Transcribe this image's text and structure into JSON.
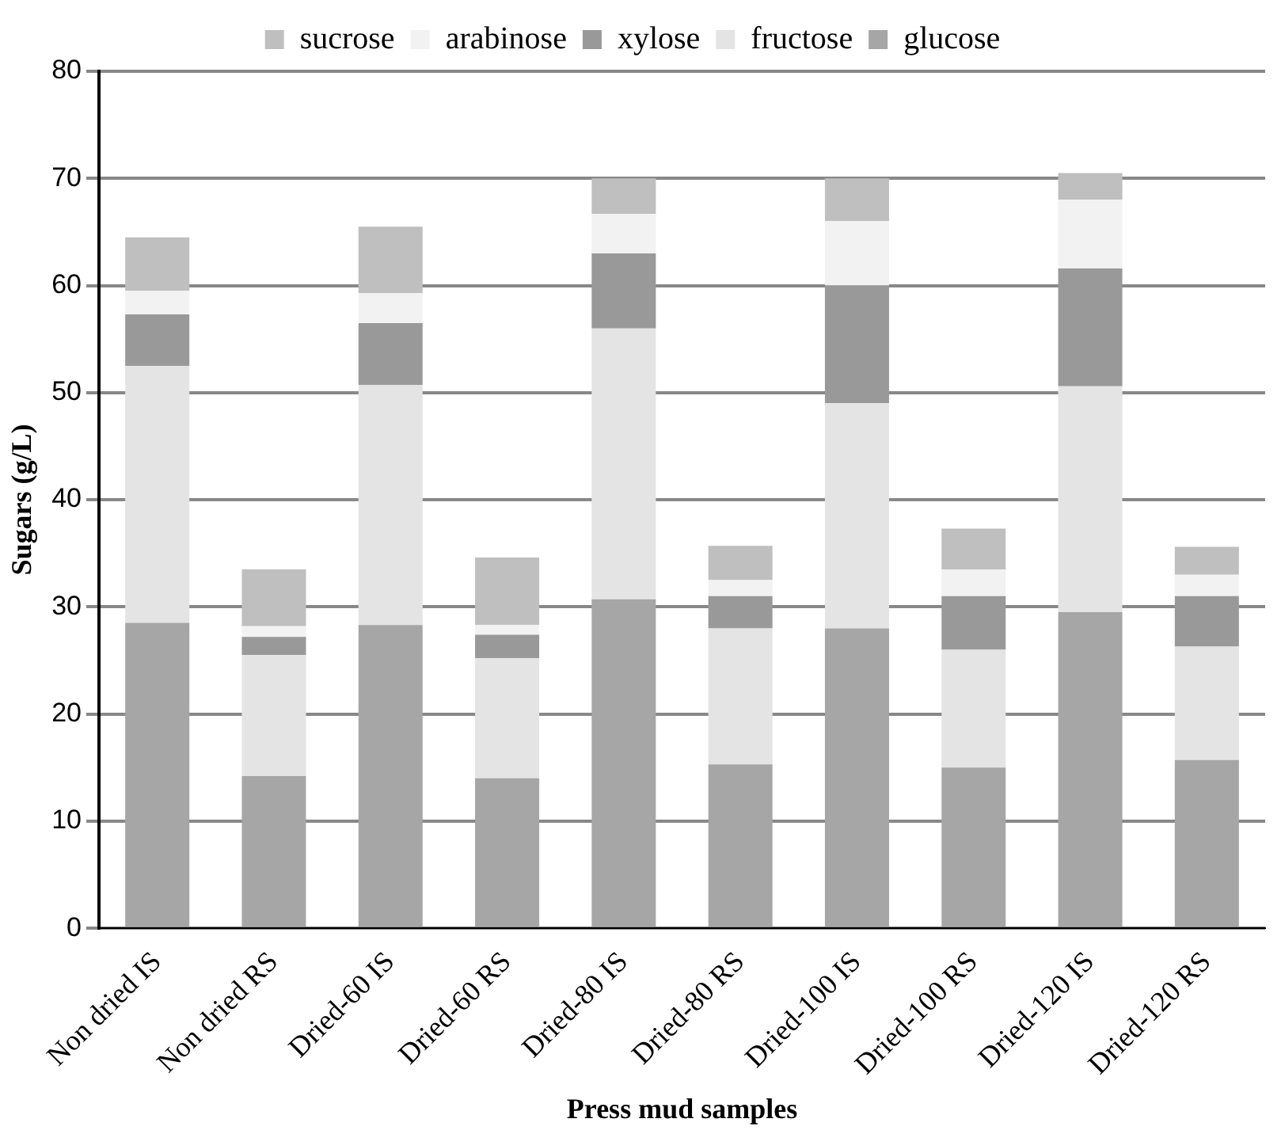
{
  "chart_data": {
    "type": "bar",
    "stacked": true,
    "xlabel": "Press mud samples",
    "ylabel": "Sugars (g/L)",
    "categories": [
      "Non dried IS",
      "Non dried RS",
      "Dried-60 IS",
      "Dried-60 RS",
      "Dried-80 IS",
      "Dried-80 RS",
      "Dried-100 IS",
      "Dried-100 RS",
      "Dried-120 IS",
      "Dried-120 RS"
    ],
    "series": [
      {
        "name": "glucose",
        "color": "#a6a6a6",
        "values": [
          28.5,
          14.2,
          28.3,
          14.0,
          30.7,
          15.3,
          28.0,
          15.0,
          29.5,
          15.7
        ]
      },
      {
        "name": "fructose",
        "color": "#e4e4e4",
        "values": [
          24.0,
          11.3,
          22.4,
          11.2,
          25.3,
          12.7,
          21.0,
          11.0,
          21.1,
          10.6
        ]
      },
      {
        "name": "xylose",
        "color": "#999999",
        "values": [
          4.8,
          1.7,
          5.8,
          2.2,
          7.0,
          3.0,
          11.0,
          5.0,
          11.0,
          4.7
        ]
      },
      {
        "name": "arabinose",
        "color": "#f2f2f2",
        "values": [
          2.2,
          1.0,
          2.8,
          0.9,
          3.7,
          1.5,
          6.0,
          2.5,
          6.4,
          2.0
        ]
      },
      {
        "name": "sucrose",
        "color": "#bfbfbf",
        "values": [
          5.0,
          5.3,
          6.2,
          6.3,
          3.3,
          3.2,
          4.0,
          3.8,
          2.5,
          2.6
        ]
      }
    ],
    "ylim": [
      0,
      80
    ],
    "yticks": [
      0,
      10,
      20,
      30,
      40,
      50,
      60,
      70,
      80
    ],
    "grid": "y",
    "legend": "top"
  }
}
